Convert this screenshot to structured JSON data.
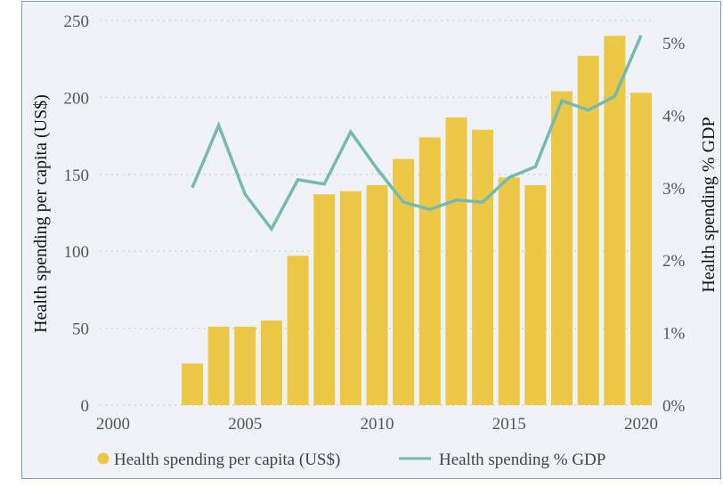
{
  "chart_data": {
    "type": "bar+line",
    "x": [
      2003,
      2004,
      2005,
      2006,
      2007,
      2008,
      2009,
      2010,
      2011,
      2012,
      2013,
      2014,
      2015,
      2016,
      2017,
      2018,
      2019,
      2020
    ],
    "series": [
      {
        "name": "Health spending per capita (US$)",
        "type": "bar",
        "axis": "left",
        "color": "#ecc846",
        "values": [
          27,
          51,
          51,
          55,
          97,
          137,
          139,
          143,
          160,
          174,
          187,
          179,
          148,
          143,
          204,
          227,
          240,
          203
        ]
      },
      {
        "name": "Health spending % GDP",
        "type": "line",
        "axis": "right",
        "color": "#75b9b1",
        "values": [
          3.0,
          3.86,
          2.91,
          2.43,
          3.11,
          3.05,
          3.77,
          3.26,
          2.8,
          2.7,
          2.83,
          2.8,
          3.14,
          3.29,
          4.2,
          4.07,
          4.26,
          5.1
        ]
      }
    ],
    "xlim": [
      2000,
      2020
    ],
    "xticks": [
      "2000",
      "2005",
      "2010",
      "2015",
      "2020"
    ],
    "ylabel": "Health spending per capita (US$)",
    "ylim": [
      0,
      250
    ],
    "yticks": [
      "0",
      "50",
      "100",
      "150",
      "200",
      "250"
    ],
    "y2label": "Health spending % GDP",
    "y2lim": [
      0,
      5
    ],
    "y2ticks": [
      "0%",
      "1%",
      "2%",
      "3%",
      "4%",
      "5%"
    ],
    "grid": "horizontal dotted",
    "legend": "bottom",
    "background": "#eff3f8"
  }
}
